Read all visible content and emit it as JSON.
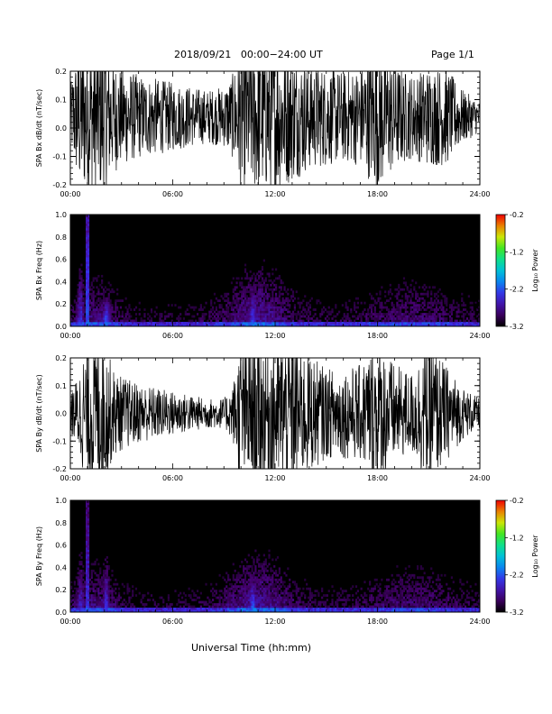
{
  "header": {
    "title": "2018/09/21   00:00−24:00 UT",
    "page": "Page 1/1"
  },
  "chart_data": [
    {
      "type": "line",
      "ylabel": "SPA Bx dB/dt (nT/sec)",
      "xlim": [
        0,
        24
      ],
      "ylim": [
        -0.2,
        0.2
      ],
      "xtick_labels": [
        "00:00",
        "06:00",
        "12:00",
        "18:00",
        "24:00"
      ],
      "ytick_labels": [
        "-0.2",
        "-0.1",
        "0.0",
        "0.1",
        "0.2"
      ],
      "envelope": {
        "hours": [
          0,
          0.5,
          1.0,
          1.5,
          2.0,
          2.5,
          3.0,
          4.0,
          5.0,
          6.0,
          7.0,
          8.0,
          9.0,
          9.5,
          10.0,
          10.5,
          11.0,
          12.0,
          13.0,
          14.0,
          15.0,
          16.0,
          17.0,
          18.0,
          19.0,
          20.0,
          21.0,
          22.0,
          23.0,
          24.0
        ],
        "amplitude": [
          0.08,
          0.2,
          0.2,
          0.2,
          0.2,
          0.15,
          0.13,
          0.11,
          0.1,
          0.09,
          0.08,
          0.07,
          0.08,
          0.11,
          0.2,
          0.2,
          0.2,
          0.2,
          0.17,
          0.14,
          0.13,
          0.12,
          0.13,
          0.2,
          0.14,
          0.11,
          0.13,
          0.13,
          0.07,
          0.04
        ],
        "offset": 0.04
      }
    },
    {
      "type": "heatmap",
      "ylabel": "SPA Bx Freq (Hz)",
      "xlim": [
        0,
        24
      ],
      "ylim": [
        0,
        1.0
      ],
      "xtick_labels": [
        "00:00",
        "06:00",
        "12:00",
        "18:00",
        "24:00"
      ],
      "ytick_labels": [
        "0.0",
        "0.2",
        "0.4",
        "0.6",
        "0.8",
        "1.0"
      ],
      "colorbar": {
        "label": "Log₁₀ Power",
        "ticks": [
          "-0.2",
          "-1.2",
          "-2.2",
          "-3.2"
        ],
        "range": [
          -3.2,
          -0.2
        ]
      },
      "hotspots": [
        {
          "hour": 1.0,
          "fmax": 1.0,
          "level": -1.6
        },
        {
          "hour": 0.6,
          "fmax": 0.55,
          "level": -2.2
        },
        {
          "hour": 2.1,
          "fmax": 0.25,
          "level": -2.0
        },
        {
          "hour": 10.7,
          "fmax": 0.35,
          "level": -2.1
        },
        {
          "hour": 14.0,
          "fmax": 0.2,
          "level": -2.6
        }
      ]
    },
    {
      "type": "line",
      "ylabel": "SPA By dB/dt (nT/sec)",
      "xlim": [
        0,
        24
      ],
      "ylim": [
        -0.2,
        0.2
      ],
      "xtick_labels": [
        "00:00",
        "06:00",
        "12:00",
        "18:00",
        "24:00"
      ],
      "ytick_labels": [
        "-0.2",
        "-0.1",
        "0.0",
        "0.1",
        "0.2"
      ],
      "envelope": {
        "hours": [
          0,
          0.5,
          1.0,
          1.5,
          2.0,
          2.5,
          3.0,
          4.0,
          5.0,
          6.0,
          7.0,
          8.0,
          9.0,
          9.5,
          10.0,
          10.5,
          11.0,
          12.0,
          13.0,
          14.0,
          15.0,
          16.0,
          17.0,
          18.0,
          19.0,
          20.0,
          21.0,
          22.0,
          23.0,
          24.0
        ],
        "amplitude": [
          0.05,
          0.11,
          0.2,
          0.2,
          0.2,
          0.12,
          0.1,
          0.08,
          0.07,
          0.06,
          0.05,
          0.04,
          0.04,
          0.07,
          0.2,
          0.2,
          0.2,
          0.2,
          0.2,
          0.16,
          0.12,
          0.12,
          0.13,
          0.2,
          0.13,
          0.11,
          0.2,
          0.13,
          0.07,
          0.04
        ],
        "offset": 0.0
      }
    },
    {
      "type": "heatmap",
      "ylabel": "SPA By Freq (Hz)",
      "xlim": [
        0,
        24
      ],
      "ylim": [
        0,
        1.0
      ],
      "xtick_labels": [
        "00:00",
        "06:00",
        "12:00",
        "18:00",
        "24:00"
      ],
      "ytick_labels": [
        "0.0",
        "0.2",
        "0.4",
        "0.6",
        "0.8",
        "1.0"
      ],
      "colorbar": {
        "label": "Log₁₀ Power",
        "ticks": [
          "-0.2",
          "-1.2",
          "-2.2",
          "-3.2"
        ],
        "range": [
          -3.2,
          -0.2
        ]
      },
      "hotspots": [
        {
          "hour": 1.0,
          "fmax": 1.0,
          "level": -1.8
        },
        {
          "hour": 0.6,
          "fmax": 0.6,
          "level": -2.3
        },
        {
          "hour": 2.1,
          "fmax": 0.5,
          "level": -2.2
        },
        {
          "hour": 10.7,
          "fmax": 0.3,
          "level": -2.0
        },
        {
          "hour": 14.0,
          "fmax": 0.2,
          "level": -2.6
        },
        {
          "hour": 19.9,
          "fmax": 0.15,
          "level": -2.7
        }
      ]
    }
  ],
  "xlabel": "Universal Time (hh:mm)"
}
